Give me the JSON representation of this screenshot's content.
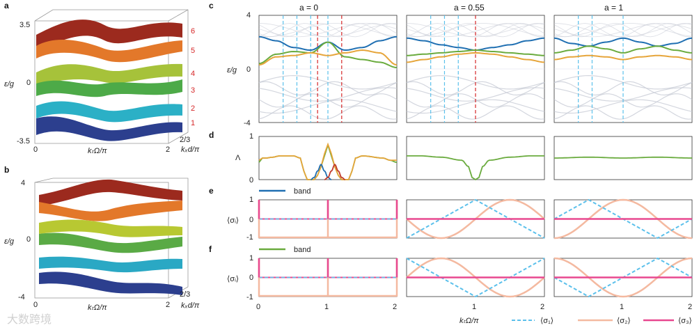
{
  "watermark": "大数跨境",
  "panels": {
    "a": {
      "label": "a",
      "ylabel": "ε/g",
      "xlabel": "kₜΩ/π",
      "zlabel": "kₓd/π",
      "yticks": [
        "3.5",
        "0",
        "-3.5"
      ],
      "xticks": [
        "0",
        "2"
      ],
      "zticks": [
        "2/3"
      ],
      "band_index_labels": [
        "1",
        "2",
        "3",
        "4",
        "5",
        "6"
      ]
    },
    "b": {
      "label": "b",
      "ylabel": "ε/g",
      "xlabel": "kₜΩ/π",
      "zlabel": "kₓd/π",
      "yticks": [
        "4",
        "0",
        "-4"
      ],
      "xticks": [
        "0",
        "2"
      ],
      "zticks": [
        "2/3"
      ]
    },
    "c": {
      "label": "c",
      "ylabel": "ε/g",
      "yticks": [
        "4",
        "0",
        "-4"
      ]
    },
    "d": {
      "label": "d",
      "ylabel": "Λ",
      "yticks": [
        "1",
        "0"
      ]
    },
    "e": {
      "label": "e",
      "ylabel": "⟨σᵢ⟩",
      "yticks": [
        "1",
        "0",
        "-1"
      ],
      "legend": "band"
    },
    "f": {
      "label": "f",
      "ylabel": "⟨σᵢ⟩",
      "yticks": [
        "1",
        "0",
        "-1"
      ],
      "legend": "band"
    }
  },
  "columns": [
    {
      "title": "a = 0"
    },
    {
      "title": "a = 0.55"
    },
    {
      "title": "a = 1"
    }
  ],
  "x_axis": {
    "label": "kₜΩ/π",
    "ticks": [
      "0",
      "1",
      "2"
    ]
  },
  "bottom_legend": [
    {
      "label": "⟨σ₁⟩",
      "color": "#5bc0eb",
      "style": "dashed"
    },
    {
      "label": "⟨σ₂⟩",
      "color": "#f4b9a0",
      "style": "solid"
    },
    {
      "label": "⟨σ₃⟩",
      "color": "#e8488f",
      "style": "solid"
    }
  ],
  "colors": {
    "band_blue": "#1f6fb2",
    "band_green": "#6aab3e",
    "band_orange": "#e6a53a",
    "band_red": "#c0392b",
    "grey": "#c8ccd6",
    "dash_blue": "#5bc0eb",
    "dash_red": "#d62728",
    "sigma1": "#5bc0eb",
    "sigma2": "#f4b9a0",
    "sigma3": "#e8488f"
  },
  "chart_data": [
    {
      "type": "line",
      "title": "a = 0",
      "panel": "c",
      "xlabel": "kₜΩ/π",
      "ylabel": "ε/g",
      "xlim": [
        0,
        2
      ],
      "ylim": [
        -4,
        4
      ],
      "series": [
        {
          "name": "blue band",
          "x": [
            0,
            0.25,
            0.5,
            0.75,
            1,
            1.25,
            1.5,
            1.75,
            2
          ],
          "values": [
            2.4,
            2.1,
            1.6,
            1.4,
            2.0,
            1.4,
            1.6,
            2.1,
            2.4
          ]
        },
        {
          "name": "green band",
          "x": [
            0,
            0.25,
            0.5,
            0.75,
            1,
            1.25,
            1.5,
            1.75,
            2
          ],
          "values": [
            0.4,
            1.1,
            1.3,
            1.2,
            2.0,
            0.9,
            0.7,
            0.5,
            0.1
          ]
        },
        {
          "name": "orange band",
          "x": [
            0,
            0.25,
            0.5,
            0.75,
            1,
            1.25,
            1.5,
            1.75,
            2
          ],
          "values": [
            0.3,
            0.9,
            1.0,
            1.2,
            1.0,
            1.2,
            1.4,
            1.2,
            0.3
          ]
        }
      ],
      "vlines_blue": [
        0.35,
        0.55,
        0.75,
        1.0
      ],
      "vlines_red": [
        0.85,
        1.2
      ]
    },
    {
      "type": "line",
      "title": "a = 0.55",
      "panel": "c",
      "xlim": [
        0,
        2
      ],
      "ylim": [
        -4,
        4
      ],
      "series": [
        {
          "name": "blue band",
          "x": [
            0,
            0.25,
            0.5,
            0.75,
            1,
            1.25,
            1.5,
            1.75,
            2
          ],
          "values": [
            2.3,
            2.1,
            1.8,
            1.6,
            1.4,
            1.6,
            1.8,
            2.1,
            2.3
          ]
        },
        {
          "name": "green band",
          "x": [
            0,
            0.25,
            0.5,
            0.75,
            1,
            1.25,
            1.5,
            1.75,
            2
          ],
          "values": [
            1.0,
            1.1,
            1.2,
            1.3,
            1.4,
            1.3,
            1.2,
            1.1,
            1.0
          ]
        },
        {
          "name": "orange band",
          "x": [
            0,
            0.25,
            0.5,
            0.75,
            1,
            1.25,
            1.5,
            1.75,
            2
          ],
          "values": [
            0.5,
            0.7,
            0.9,
            1.1,
            1.2,
            1.1,
            0.9,
            0.7,
            0.5
          ]
        }
      ],
      "vlines_blue": [
        0.35,
        0.55,
        0.75
      ],
      "vlines_red": [
        1.0
      ]
    },
    {
      "type": "line",
      "title": "a = 1",
      "panel": "c",
      "xlim": [
        0,
        2
      ],
      "ylim": [
        -4,
        4
      ],
      "series": [
        {
          "name": "blue band",
          "x": [
            0,
            0.25,
            0.5,
            0.75,
            1,
            1.25,
            1.5,
            1.75,
            2
          ],
          "values": [
            2.3,
            1.9,
            1.7,
            2.0,
            2.3,
            2.0,
            1.7,
            1.9,
            2.3
          ]
        },
        {
          "name": "green band",
          "x": [
            0,
            0.25,
            0.5,
            0.75,
            1,
            1.25,
            1.5,
            1.75,
            2
          ],
          "values": [
            1.2,
            1.4,
            1.7,
            1.5,
            1.2,
            1.5,
            1.7,
            1.4,
            1.2
          ]
        },
        {
          "name": "orange band",
          "x": [
            0,
            0.25,
            0.5,
            0.75,
            1,
            1.25,
            1.5,
            1.75,
            2
          ],
          "values": [
            0.7,
            0.9,
            1.0,
            0.9,
            0.7,
            0.9,
            1.0,
            0.9,
            0.7
          ]
        }
      ],
      "vlines_blue": [
        0.35,
        0.55,
        1.0
      ],
      "vlines_red": []
    },
    {
      "type": "line",
      "panel": "d",
      "ylabel": "Λ",
      "xlim": [
        0,
        2
      ],
      "ylim": [
        0,
        1
      ],
      "columns": [
        {
          "series": [
            {
              "name": "green",
              "x": [
                0,
                0.05,
                0.1,
                0.2,
                0.3,
                0.5,
                0.6,
                0.65,
                0.7,
                0.75,
                0.8,
                0.85,
                0.9,
                0.95,
                1.0,
                1.05,
                1.1,
                1.15,
                1.2,
                1.25,
                1.3,
                1.35,
                1.4,
                1.5,
                1.8,
                1.9,
                2.0
              ],
              "values": [
                0.4,
                0.5,
                0.5,
                0.52,
                0.55,
                0.55,
                0.5,
                0.2,
                0.0,
                0.0,
                0.0,
                0.1,
                0.3,
                0.55,
                0.8,
                0.55,
                0.3,
                0.1,
                0.0,
                0.0,
                0.0,
                0.2,
                0.5,
                0.55,
                0.5,
                0.45,
                0.4
              ]
            },
            {
              "name": "orange",
              "x": [
                0,
                0.05,
                0.1,
                0.2,
                0.3,
                0.5,
                0.6,
                0.65,
                0.7,
                0.75,
                0.8,
                0.85,
                0.9,
                0.95,
                1.0,
                1.05,
                1.1,
                1.15,
                1.2,
                1.25,
                1.3,
                1.35,
                1.4,
                1.5,
                1.8,
                1.9,
                2.0
              ],
              "values": [
                0.45,
                0.5,
                0.5,
                0.52,
                0.55,
                0.55,
                0.5,
                0.2,
                0.0,
                0.0,
                0.0,
                0.1,
                0.3,
                0.6,
                0.82,
                0.6,
                0.3,
                0.1,
                0.0,
                0.0,
                0.0,
                0.2,
                0.5,
                0.55,
                0.5,
                0.45,
                0.45
              ]
            },
            {
              "name": "blue",
              "x": [
                0.75,
                0.8,
                0.85,
                0.9,
                0.95,
                1.0,
                1.05
              ],
              "values": [
                0.0,
                0.05,
                0.2,
                0.35,
                0.2,
                0.05,
                0.0
              ]
            },
            {
              "name": "red",
              "x": [
                0.95,
                1.0,
                1.05,
                1.1,
                1.15,
                1.2,
                1.25
              ],
              "values": [
                0.0,
                0.05,
                0.2,
                0.35,
                0.2,
                0.05,
                0.0
              ]
            }
          ]
        },
        {
          "series": [
            {
              "name": "green",
              "x": [
                0,
                0.2,
                0.5,
                0.8,
                0.9,
                0.95,
                1.0,
                1.05,
                1.1,
                1.2,
                1.5,
                1.8,
                2.0
              ],
              "values": [
                0.55,
                0.55,
                0.52,
                0.45,
                0.3,
                0.05,
                0.0,
                0.05,
                0.3,
                0.45,
                0.52,
                0.55,
                0.55
              ]
            }
          ]
        },
        {
          "series": [
            {
              "name": "green",
              "x": [
                0,
                0.5,
                1.0,
                1.5,
                2.0
              ],
              "values": [
                0.5,
                0.52,
                0.5,
                0.52,
                0.5
              ]
            }
          ]
        }
      ]
    },
    {
      "type": "line",
      "panel": "e",
      "ylabel": "⟨σᵢ⟩",
      "xlim": [
        0,
        2
      ],
      "ylim": [
        -1,
        1
      ],
      "note": "band (blue) spin components",
      "columns": [
        {
          "sigma1": "zero",
          "sigma2": "-1 with jumps to 1 at x=0,1,2",
          "sigma3": "0 with spikes to 1 at x=0,1,2"
        },
        {
          "sigma1": "triangle between -1 and 1",
          "sigma2": "sinusoid between -1 and 1",
          "sigma3": "0"
        },
        {
          "sigma1": "triangle between -1 and 1",
          "sigma2": "sinusoid between -1 and 1",
          "sigma3": "0"
        }
      ]
    },
    {
      "type": "line",
      "panel": "f",
      "ylabel": "⟨σᵢ⟩",
      "xlim": [
        0,
        2
      ],
      "ylim": [
        -1,
        1
      ],
      "note": "band (green) spin components"
    }
  ]
}
